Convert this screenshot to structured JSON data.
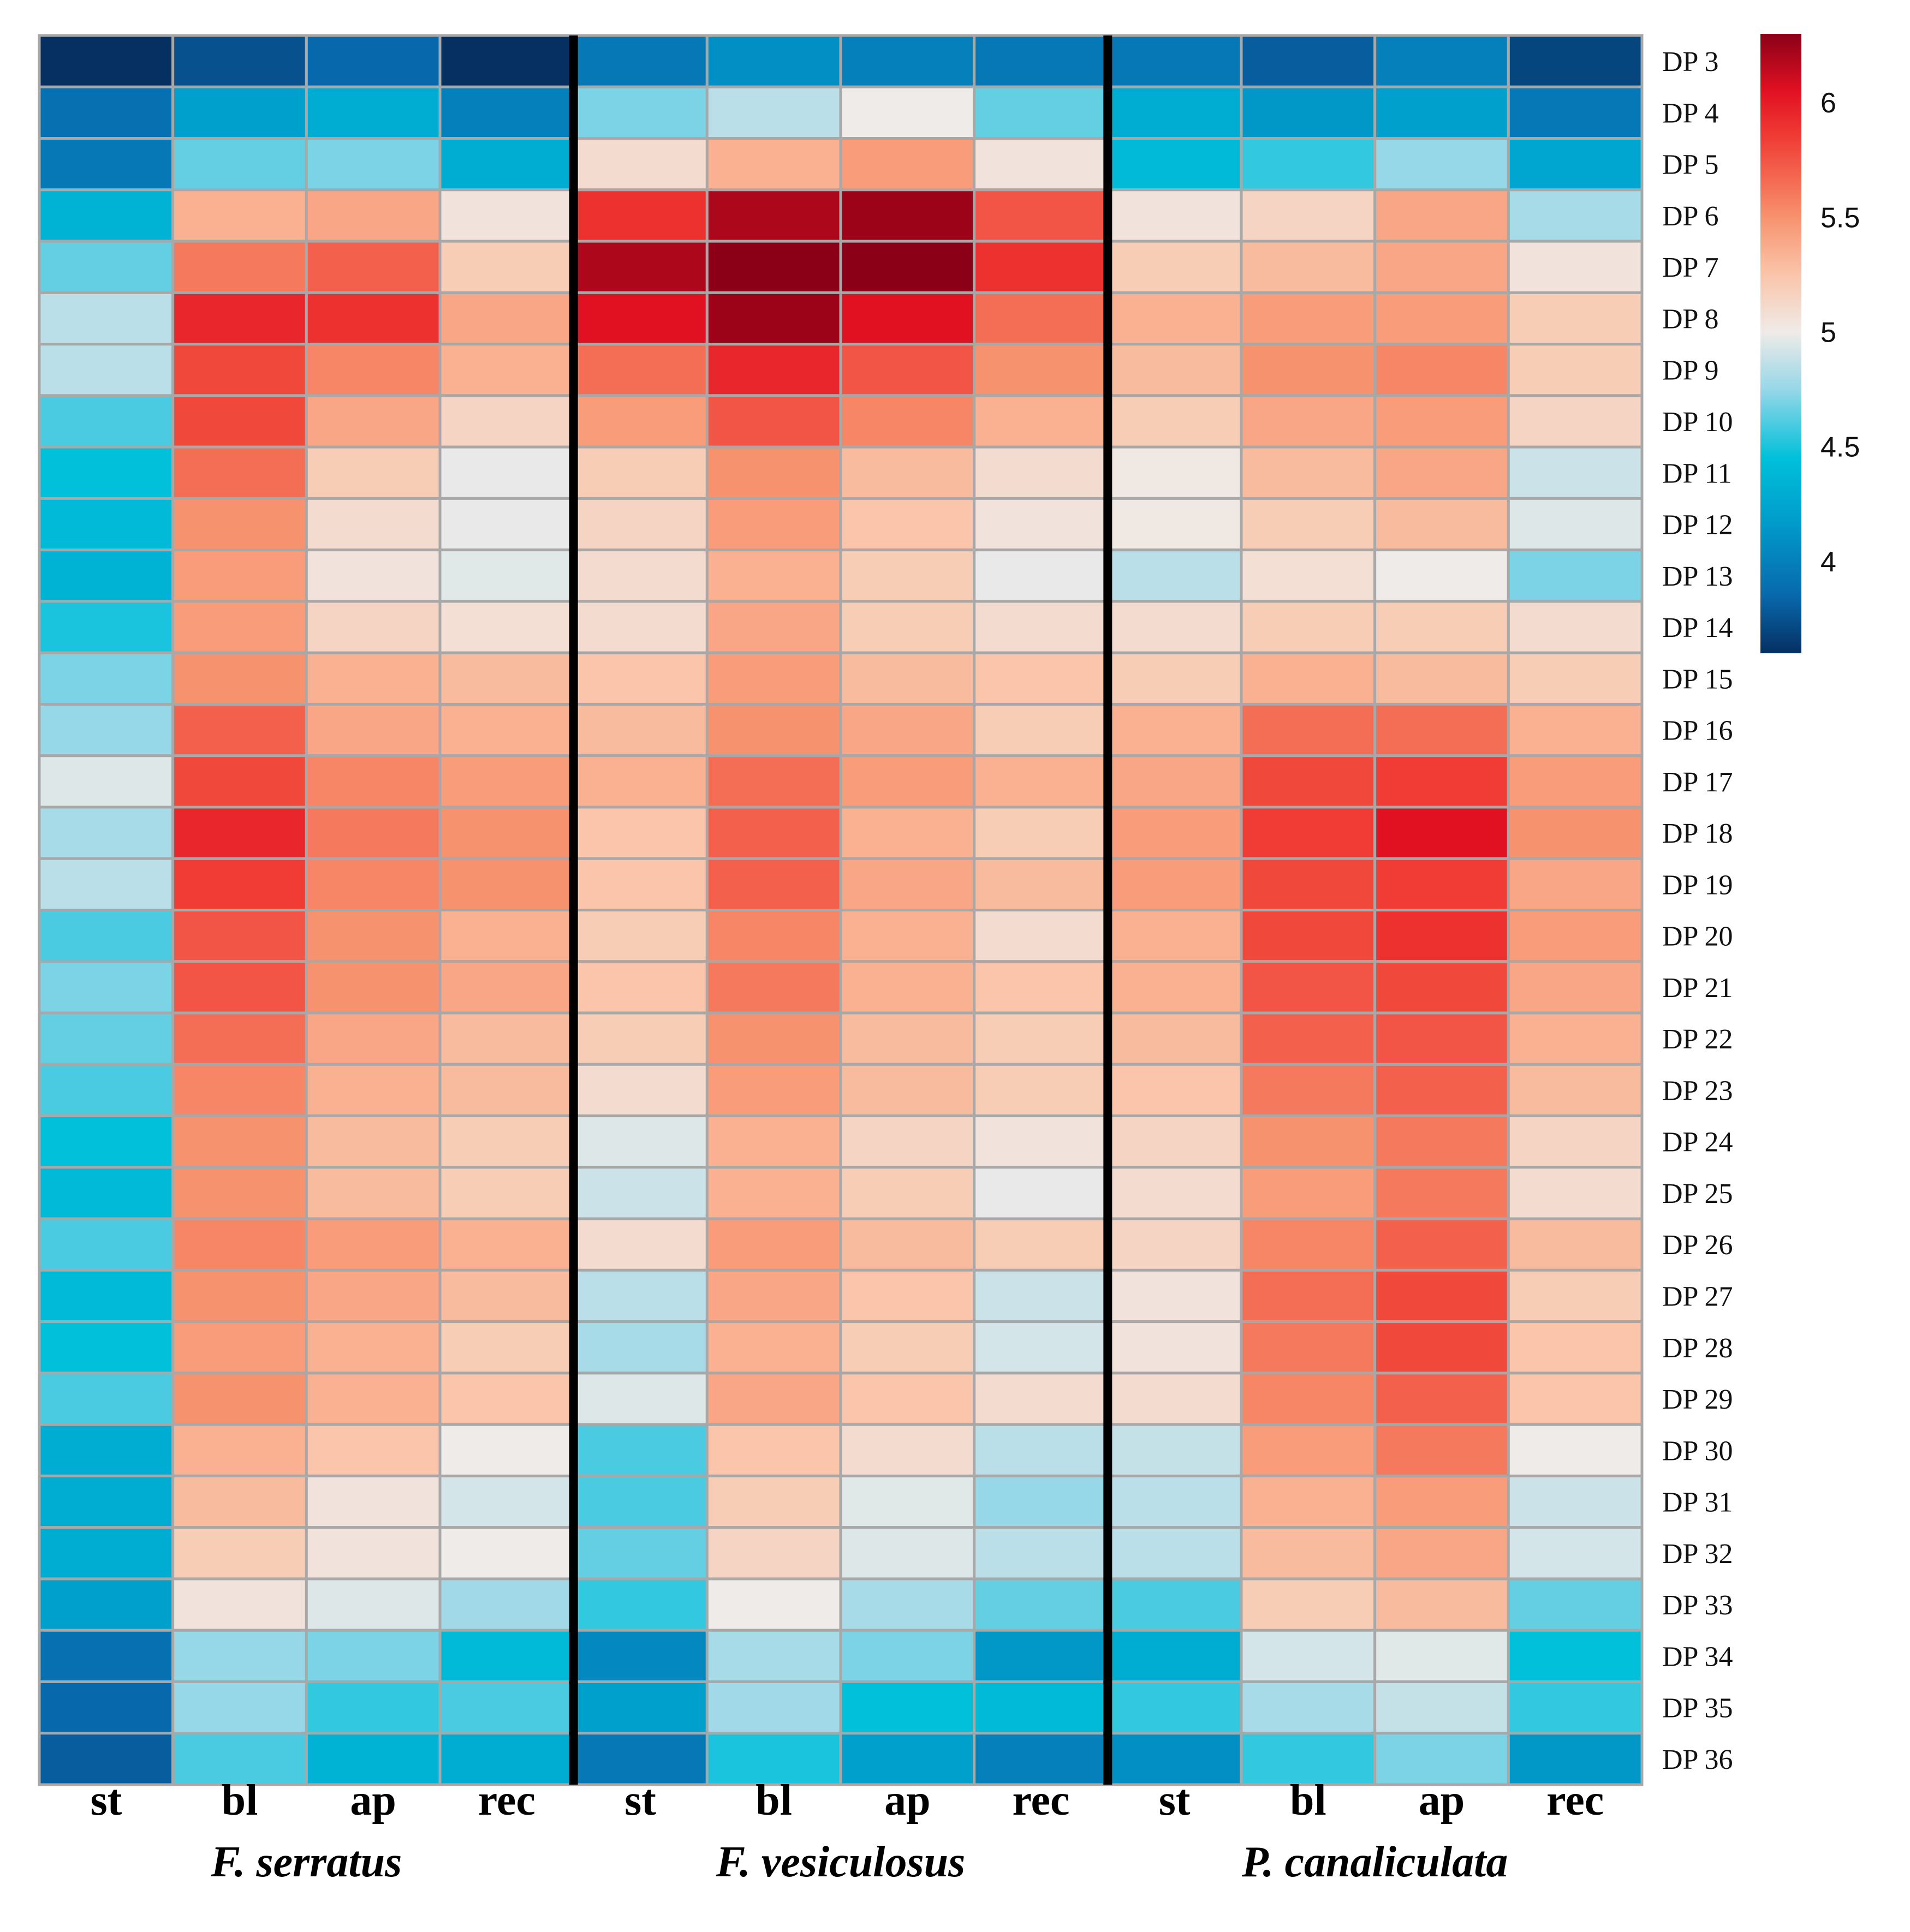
{
  "chart_data": {
    "type": "heatmap",
    "title": "",
    "rows": [
      "DP 3",
      "DP 4",
      "DP 5",
      "DP 6",
      "DP 7",
      "DP 8",
      "DP 9",
      "DP 10",
      "DP 11",
      "DP 12",
      "DP 13",
      "DP 14",
      "DP 15",
      "DP 16",
      "DP 17",
      "DP 18",
      "DP 19",
      "DP 20",
      "DP 21",
      "DP 22",
      "DP 23",
      "DP 24",
      "DP 25",
      "DP 26",
      "DP 27",
      "DP 28",
      "DP 29",
      "DP 30",
      "DP 31",
      "DP 32",
      "DP 33",
      "DP 34",
      "DP 35",
      "DP 36"
    ],
    "groups": [
      {
        "name": "F. serratus",
        "columns": [
          "st",
          "bl",
          "ap",
          "rec"
        ]
      },
      {
        "name": "F. vesiculosus",
        "columns": [
          "st",
          "bl",
          "ap",
          "rec"
        ]
      },
      {
        "name": "P. canaliculata",
        "columns": [
          "st",
          "bl",
          "ap",
          "rec"
        ]
      }
    ],
    "values": [
      [
        3.6,
        3.75,
        3.85,
        3.55,
        3.95,
        4.1,
        4.0,
        3.95,
        3.95,
        3.8,
        4.0,
        3.7
      ],
      [
        3.9,
        4.2,
        4.3,
        4.0,
        4.7,
        4.85,
        5.0,
        4.65,
        4.3,
        4.15,
        4.2,
        3.95
      ],
      [
        3.95,
        4.65,
        4.7,
        4.3,
        5.1,
        5.35,
        5.45,
        5.05,
        4.4,
        4.55,
        4.75,
        4.25
      ],
      [
        4.35,
        5.35,
        5.4,
        5.05,
        5.9,
        6.2,
        6.25,
        5.75,
        5.05,
        5.15,
        5.4,
        4.8
      ],
      [
        4.65,
        5.6,
        5.7,
        5.2,
        6.2,
        6.35,
        6.3,
        5.9,
        5.2,
        5.3,
        5.4,
        5.05
      ],
      [
        4.85,
        5.95,
        5.9,
        5.4,
        6.05,
        6.25,
        6.05,
        5.65,
        5.35,
        5.45,
        5.45,
        5.2
      ],
      [
        4.85,
        5.8,
        5.55,
        5.35,
        5.65,
        5.95,
        5.75,
        5.5,
        5.3,
        5.5,
        5.55,
        5.2
      ],
      [
        4.6,
        5.8,
        5.4,
        5.15,
        5.45,
        5.75,
        5.55,
        5.35,
        5.2,
        5.4,
        5.45,
        5.15
      ],
      [
        4.45,
        5.65,
        5.2,
        4.98,
        5.2,
        5.5,
        5.3,
        5.1,
        5.02,
        5.3,
        5.4,
        4.9
      ],
      [
        4.4,
        5.5,
        5.1,
        4.98,
        5.15,
        5.45,
        5.25,
        5.05,
        5.02,
        5.2,
        5.3,
        4.95
      ],
      [
        4.35,
        5.45,
        5.05,
        4.96,
        5.1,
        5.35,
        5.2,
        4.98,
        4.85,
        5.08,
        5.0,
        4.7
      ],
      [
        4.5,
        5.45,
        5.15,
        5.08,
        5.1,
        5.4,
        5.2,
        5.1,
        5.1,
        5.2,
        5.2,
        5.1
      ],
      [
        4.7,
        5.5,
        5.35,
        5.3,
        5.25,
        5.45,
        5.3,
        5.25,
        5.2,
        5.35,
        5.3,
        5.2
      ],
      [
        4.75,
        5.7,
        5.4,
        5.35,
        5.3,
        5.5,
        5.4,
        5.2,
        5.35,
        5.65,
        5.65,
        5.35
      ],
      [
        4.95,
        5.8,
        5.55,
        5.45,
        5.35,
        5.65,
        5.45,
        5.35,
        5.4,
        5.8,
        5.85,
        5.45
      ],
      [
        4.8,
        5.95,
        5.6,
        5.5,
        5.25,
        5.7,
        5.35,
        5.2,
        5.45,
        5.85,
        6.05,
        5.5
      ],
      [
        4.85,
        5.85,
        5.55,
        5.5,
        5.25,
        5.7,
        5.4,
        5.3,
        5.45,
        5.8,
        5.85,
        5.4
      ],
      [
        4.6,
        5.75,
        5.5,
        5.35,
        5.2,
        5.55,
        5.35,
        5.1,
        5.35,
        5.8,
        5.9,
        5.45
      ],
      [
        4.7,
        5.75,
        5.5,
        5.4,
        5.25,
        5.6,
        5.35,
        5.25,
        5.35,
        5.75,
        5.8,
        5.4
      ],
      [
        4.65,
        5.65,
        5.4,
        5.3,
        5.2,
        5.5,
        5.3,
        5.2,
        5.3,
        5.7,
        5.75,
        5.35
      ],
      [
        4.6,
        5.55,
        5.35,
        5.3,
        5.1,
        5.45,
        5.3,
        5.2,
        5.25,
        5.6,
        5.7,
        5.3
      ],
      [
        4.45,
        5.5,
        5.3,
        5.2,
        4.95,
        5.35,
        5.15,
        5.05,
        5.15,
        5.5,
        5.6,
        5.15
      ],
      [
        4.4,
        5.5,
        5.3,
        5.2,
        4.9,
        5.35,
        5.2,
        4.98,
        5.1,
        5.45,
        5.6,
        5.1
      ],
      [
        4.6,
        5.55,
        5.45,
        5.35,
        5.1,
        5.45,
        5.3,
        5.2,
        5.15,
        5.55,
        5.7,
        5.3
      ],
      [
        4.4,
        5.5,
        5.4,
        5.3,
        4.85,
        5.4,
        5.25,
        4.9,
        5.05,
        5.65,
        5.8,
        5.2
      ],
      [
        4.45,
        5.45,
        5.35,
        5.2,
        4.8,
        5.35,
        5.2,
        4.92,
        5.05,
        5.6,
        5.8,
        5.25
      ],
      [
        4.6,
        5.5,
        5.35,
        5.25,
        4.95,
        5.4,
        5.25,
        5.1,
        5.1,
        5.55,
        5.7,
        5.25
      ],
      [
        4.3,
        5.35,
        5.25,
        5.0,
        4.6,
        5.25,
        5.1,
        4.85,
        4.88,
        5.45,
        5.6,
        5.0
      ],
      [
        4.3,
        5.3,
        5.05,
        4.92,
        4.6,
        5.2,
        4.96,
        4.75,
        4.85,
        5.35,
        5.45,
        4.9
      ],
      [
        4.3,
        5.2,
        5.05,
        5.0,
        4.65,
        5.15,
        4.95,
        4.85,
        4.85,
        5.3,
        5.4,
        4.92
      ],
      [
        4.2,
        5.05,
        4.95,
        4.78,
        4.55,
        5.0,
        4.8,
        4.65,
        4.6,
        5.2,
        5.3,
        4.65
      ],
      [
        3.9,
        4.75,
        4.7,
        4.4,
        4.05,
        4.8,
        4.7,
        4.15,
        4.3,
        4.92,
        4.96,
        4.45
      ],
      [
        3.85,
        4.75,
        4.55,
        4.6,
        4.2,
        4.78,
        4.45,
        4.4,
        4.55,
        4.8,
        4.88,
        4.55
      ],
      [
        3.8,
        4.6,
        4.35,
        4.3,
        3.95,
        4.5,
        4.2,
        4.0,
        4.1,
        4.55,
        4.7,
        4.15
      ]
    ],
    "colorbar": {
      "min": 3.6,
      "max": 6.3,
      "ticks": [
        4,
        4.5,
        5,
        5.5,
        6
      ],
      "tick_labels": [
        "4",
        "4.5",
        "5",
        "5.5",
        "6"
      ]
    },
    "colors": {
      "low": "#053061",
      "mid_low": "#00BCD8",
      "mid": "#EFEFEF",
      "mid_high": "#F9A88A",
      "high_red": "#EE1C25",
      "high": "#8B0017",
      "separator": "#000000",
      "cell_border": "#A8A8A8"
    }
  }
}
